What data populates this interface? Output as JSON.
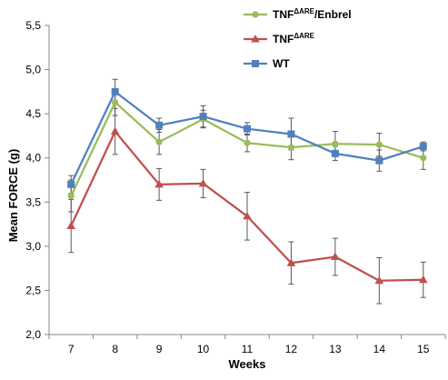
{
  "chart_data": {
    "type": "line",
    "title": "",
    "xlabel": "Weeks",
    "ylabel": "Mean FORCE (g)",
    "categories": [
      "7",
      "8",
      "9",
      "10",
      "11",
      "12",
      "13",
      "14",
      "15"
    ],
    "y_ticks": [
      "2,0",
      "2,5",
      "3,0",
      "3,5",
      "4,0",
      "4,5",
      "5,0",
      "5,5"
    ],
    "ylim": [
      2.0,
      5.5
    ],
    "grid": false,
    "legend_position": "top-right",
    "series": [
      {
        "name": "TNF",
        "name_sup": "ΔARE",
        "name_suffix": "/Enbrel",
        "color": "#9bbb59",
        "marker": "circle",
        "values": [
          3.57,
          4.63,
          4.18,
          4.44,
          4.17,
          4.12,
          4.16,
          4.15,
          4.0
        ],
        "errors": [
          0.18,
          0.15,
          0.14,
          0.1,
          0.1,
          0.14,
          0.14,
          0.13,
          0.13
        ]
      },
      {
        "name": "TNF",
        "name_sup": "ΔARE",
        "name_suffix": "",
        "color": "#c0504d",
        "marker": "triangle",
        "values": [
          3.23,
          4.3,
          3.7,
          3.71,
          3.34,
          2.81,
          2.88,
          2.61,
          2.62
        ],
        "errors": [
          0.3,
          0.26,
          0.18,
          0.16,
          0.27,
          0.24,
          0.21,
          0.26,
          0.2
        ]
      },
      {
        "name": "WT",
        "name_sup": "",
        "name_suffix": "",
        "color": "#4f81bd",
        "marker": "square",
        "values": [
          3.7,
          4.75,
          4.37,
          4.47,
          4.33,
          4.27,
          4.05,
          3.97,
          4.13
        ],
        "errors": [
          0.1,
          0.14,
          0.08,
          0.12,
          0.07,
          0.18,
          0.08,
          0.12,
          0.05
        ]
      }
    ]
  }
}
